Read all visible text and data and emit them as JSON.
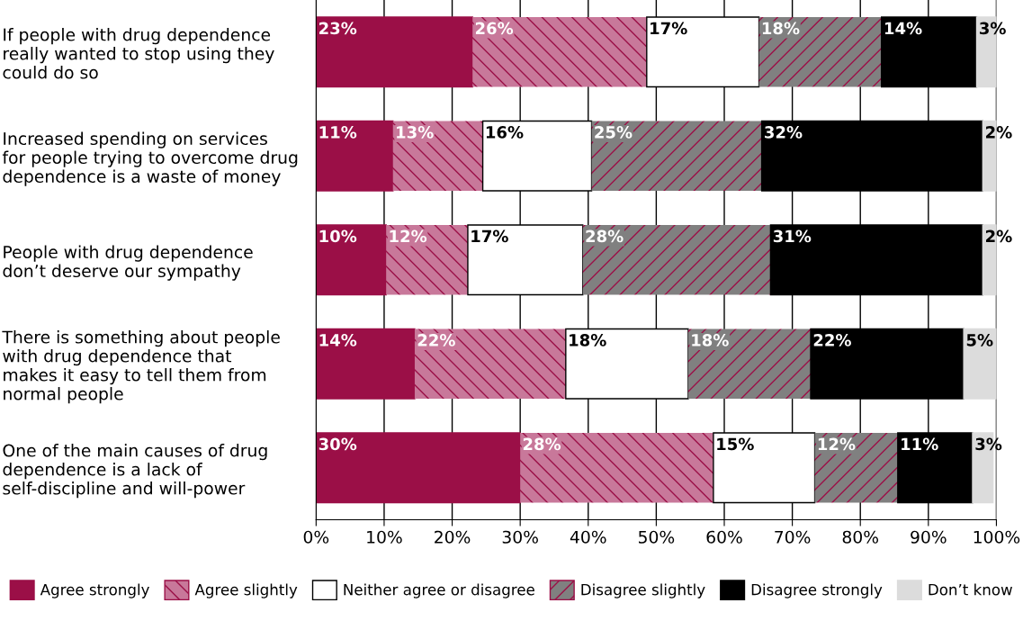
{
  "chart_data": {
    "type": "bar",
    "orientation": "horizontal",
    "stacked": true,
    "categories": [
      "If people with drug dependence\nreally wanted to stop using they\ncould do so",
      "Increased spending on services\nfor people trying to overcome drug\ndependence is a waste of money",
      "People with drug dependence\ndon’t deserve our sympathy",
      "There is something about people\nwith drug dependence that\nmakes it easy to tell them from\nnormal people",
      "One of the main causes of drug\ndependence is a lack of\nself-discipline and will-power"
    ],
    "series": [
      {
        "name": "Agree strongly",
        "color": "#9b0f47",
        "values": [
          23,
          11.3,
          10.3,
          14.5,
          30
        ],
        "value_labels": [
          "23%",
          "11%",
          "10%",
          "14%",
          "30%"
        ]
      },
      {
        "name": "Agree slightly",
        "color": "#c8789a",
        "values": [
          25.6,
          13.2,
          12,
          22.2,
          28.4
        ],
        "value_labels": [
          "26%",
          "13%",
          "12%",
          "22%",
          "28%"
        ]
      },
      {
        "name": "Neither agree or disagree",
        "color": "#ffffff",
        "values": [
          16.5,
          16,
          16.9,
          18,
          14.9
        ],
        "value_labels": [
          "17%",
          "16%",
          "17%",
          "18%",
          "15%"
        ]
      },
      {
        "name": "Disagree slightly",
        "color": "#808080",
        "values": [
          18,
          25,
          27.6,
          18,
          12.2
        ],
        "value_labels": [
          "18%",
          "25%",
          "28%",
          "18%",
          "12%"
        ]
      },
      {
        "name": "Disagree strongly",
        "color": "#000000",
        "values": [
          14,
          32.5,
          31.2,
          22.5,
          11
        ],
        "value_labels": [
          "14%",
          "32%",
          "31%",
          "22%",
          "11%"
        ]
      },
      {
        "name": "Don’t know",
        "color": "#dcdcdc",
        "values": [
          2.9,
          2,
          2,
          4.8,
          3
        ],
        "value_labels": [
          "3%",
          "2%",
          "2%",
          "5%",
          "3%"
        ]
      }
    ],
    "xlim": [
      0,
      100
    ],
    "xticks": [
      {
        "value": 0,
        "label": "0%"
      },
      {
        "value": 10,
        "label": "10%"
      },
      {
        "value": 20,
        "label": "20%"
      },
      {
        "value": 30,
        "label": "30%"
      },
      {
        "value": 40,
        "label": "40%"
      },
      {
        "value": 50,
        "label": "50%"
      },
      {
        "value": 60,
        "label": "60%"
      },
      {
        "value": 70,
        "label": "70%"
      },
      {
        "value": 80,
        "label": "80%"
      },
      {
        "value": 90,
        "label": "90%"
      },
      {
        "value": 100,
        "label": "100%"
      }
    ],
    "grid": "x",
    "legend": "bottom"
  }
}
